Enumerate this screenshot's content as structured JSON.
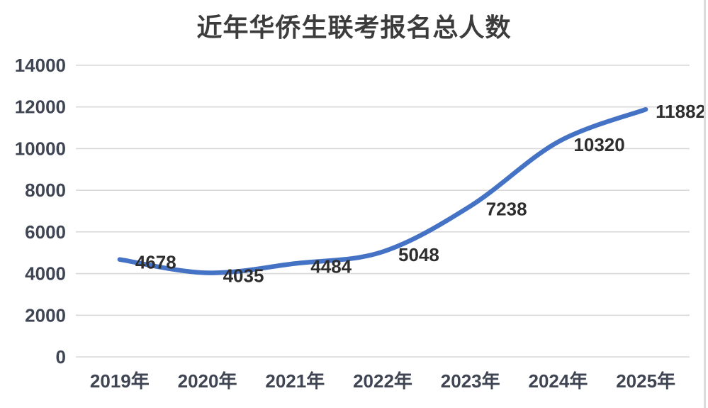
{
  "page": {
    "background": "#FFFFFF"
  },
  "colors": {
    "line": "#4472C4",
    "grid": "#D9D9D9",
    "title_text": "#3C3C3C",
    "tick_text": "#3F4553",
    "data_label_text": "#2E2E2E",
    "edge_border": "#DCDCDC",
    "background": "#FFFFFF"
  },
  "chart_data": {
    "type": "line",
    "title": "近年华侨生联考报名总人数",
    "categories": [
      "2019年",
      "2020年",
      "2021年",
      "2022年",
      "2023年",
      "2024年",
      "2025年"
    ],
    "values": [
      4678,
      4035,
      4484,
      5048,
      7238,
      10320,
      11882
    ],
    "data_labels": [
      "4678",
      "4035",
      "4484",
      "5048",
      "7238",
      "10320",
      "11882"
    ],
    "xlabel": "",
    "ylabel": "",
    "ylim": [
      0,
      14000
    ],
    "yticks": [
      0,
      2000,
      4000,
      6000,
      8000,
      10000,
      12000,
      14000
    ],
    "ytick_labels": [
      "0",
      "2000",
      "4000",
      "6000",
      "8000",
      "10000",
      "12000",
      "14000"
    ],
    "grid": true,
    "legend": "none",
    "line_style": "smooth",
    "markers": "none"
  }
}
